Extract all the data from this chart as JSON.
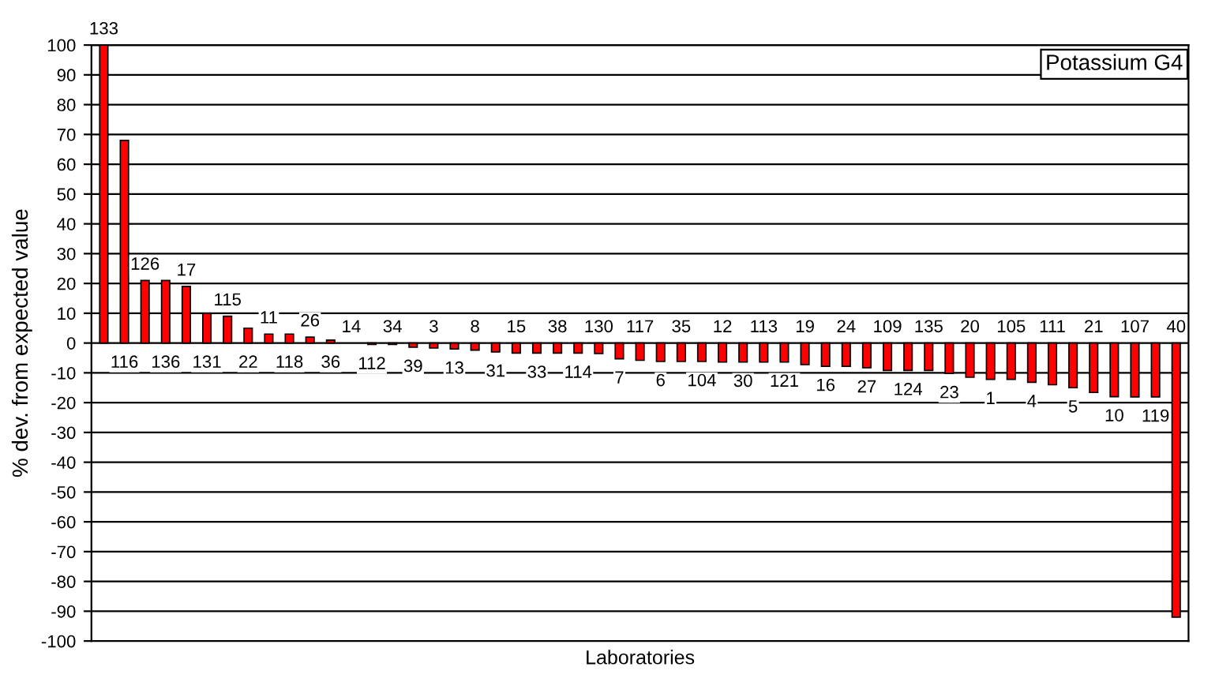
{
  "chart_data": {
    "type": "bar",
    "title": "Potassium G4",
    "xlabel": "Laboratories",
    "ylabel": "% dev. from expected value",
    "categories": [
      "133",
      "116",
      "126",
      "136",
      "17",
      "131",
      "115",
      "22",
      "11",
      "118",
      "26",
      "36",
      "14",
      "112",
      "34",
      "39",
      "3",
      "13",
      "8",
      "31",
      "15",
      "33",
      "38",
      "114",
      "130",
      "7",
      "117",
      "6",
      "35",
      "104",
      "12",
      "30",
      "113",
      "121",
      "19",
      "16",
      "24",
      "27",
      "109",
      "124",
      "135",
      "23",
      "20",
      "1",
      "105",
      "4",
      "111",
      "5",
      "21",
      "10",
      "107",
      "119",
      "40"
    ],
    "values": [
      100,
      68,
      21,
      21,
      19,
      10,
      9,
      5,
      3,
      3,
      2,
      1,
      0,
      -0.5,
      -0.5,
      -1.4,
      -1.7,
      -2,
      -2.4,
      -3,
      -3.4,
      -3.4,
      -3.4,
      -3.4,
      -3.5,
      -5.3,
      -5.8,
      -6.2,
      -6.2,
      -6.2,
      -6.4,
      -6.4,
      -6.4,
      -6.4,
      -7.2,
      -7.8,
      -7.8,
      -8.3,
      -9.2,
      -9.2,
      -9.2,
      -10.2,
      -11.5,
      -12.2,
      -12.2,
      -13.2,
      -14,
      -15,
      -16.6,
      -18,
      -18.1,
      -18.1,
      -92
    ],
    "color": "#ff0000",
    "ylim": [
      -100,
      100
    ],
    "yticks": [
      -100,
      -90,
      -80,
      -70,
      -60,
      -50,
      -40,
      -30,
      -20,
      -10,
      0,
      10,
      20,
      30,
      40,
      50,
      60,
      70,
      80,
      90,
      100
    ],
    "grid": "y",
    "legend": false
  }
}
